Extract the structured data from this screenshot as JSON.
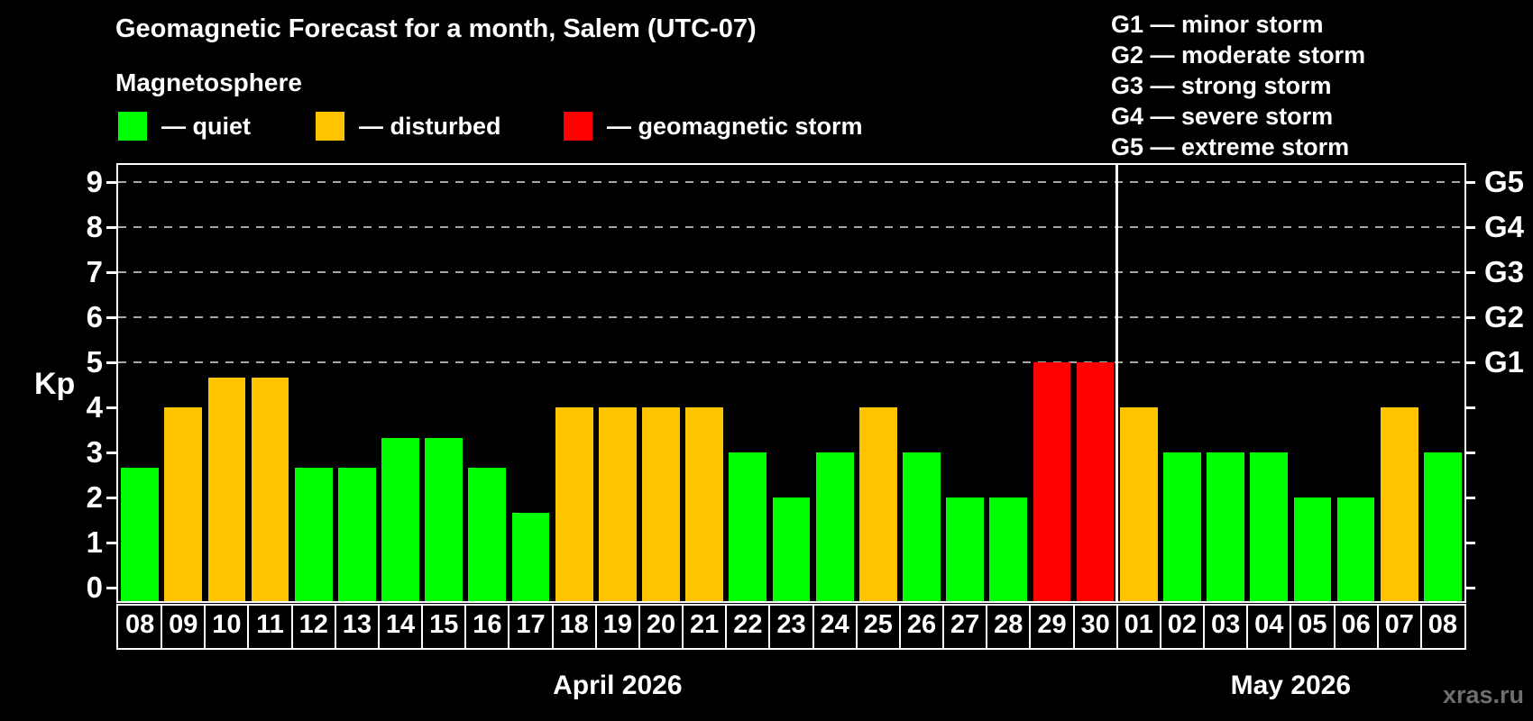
{
  "header": {
    "title": "Geomagnetic Forecast for a month, Salem (UTC-07)",
    "subtitle": "Magnetosphere"
  },
  "legend": {
    "items": [
      {
        "name": "quiet",
        "label": "— quiet",
        "color": "#00ff00",
        "offset_x": 0
      },
      {
        "name": "disturbed",
        "label": "— disturbed",
        "color": "#ffc400",
        "offset_x": 219
      },
      {
        "name": "storm",
        "label": "— geomagnetic storm",
        "color": "#ff0000",
        "offset_x": 494
      }
    ]
  },
  "g_scale_legend": {
    "lines": [
      "G1 — minor storm",
      "G2 — moderate storm",
      "G3 — strong storm",
      "G4 — severe storm",
      "G5 — extreme storm"
    ]
  },
  "watermark": "xras.ru",
  "chart_data": {
    "type": "bar",
    "title": "Geomagnetic Forecast for a month, Salem (UTC-07)",
    "ylabel": "Kp",
    "ylim": [
      -0.3,
      9.4
    ],
    "grid": "horizontal dashed lines at Kp 5..9 only",
    "legend_position": "top",
    "left_ticks": [
      0,
      1,
      2,
      3,
      4,
      5,
      6,
      7,
      8,
      9
    ],
    "right_labels": [
      {
        "kp": 5,
        "label": "G1"
      },
      {
        "kp": 6,
        "label": "G2"
      },
      {
        "kp": 7,
        "label": "G3"
      },
      {
        "kp": 8,
        "label": "G4"
      },
      {
        "kp": 9,
        "label": "G5"
      }
    ],
    "status_colors": {
      "quiet": "#00ff00",
      "disturbed": "#ffc400",
      "storm": "#ff0000"
    },
    "months": [
      {
        "label": "April 2026",
        "days": 23
      },
      {
        "label": "May 2026",
        "days": 8
      }
    ],
    "bars": [
      {
        "day": "08",
        "kp": 2.67,
        "status": "quiet"
      },
      {
        "day": "09",
        "kp": 4,
        "status": "disturbed"
      },
      {
        "day": "10",
        "kp": 4.67,
        "status": "disturbed"
      },
      {
        "day": "11",
        "kp": 4.67,
        "status": "disturbed"
      },
      {
        "day": "12",
        "kp": 2.67,
        "status": "quiet"
      },
      {
        "day": "13",
        "kp": 2.67,
        "status": "quiet"
      },
      {
        "day": "14",
        "kp": 3.33,
        "status": "quiet"
      },
      {
        "day": "15",
        "kp": 3.33,
        "status": "quiet"
      },
      {
        "day": "16",
        "kp": 2.67,
        "status": "quiet"
      },
      {
        "day": "17",
        "kp": 1.67,
        "status": "quiet"
      },
      {
        "day": "18",
        "kp": 4,
        "status": "disturbed"
      },
      {
        "day": "19",
        "kp": 4,
        "status": "disturbed"
      },
      {
        "day": "20",
        "kp": 4,
        "status": "disturbed"
      },
      {
        "day": "21",
        "kp": 4,
        "status": "disturbed"
      },
      {
        "day": "22",
        "kp": 3,
        "status": "quiet"
      },
      {
        "day": "23",
        "kp": 2,
        "status": "quiet"
      },
      {
        "day": "24",
        "kp": 3,
        "status": "quiet"
      },
      {
        "day": "25",
        "kp": 4,
        "status": "disturbed"
      },
      {
        "day": "26",
        "kp": 3,
        "status": "quiet"
      },
      {
        "day": "27",
        "kp": 2,
        "status": "quiet"
      },
      {
        "day": "28",
        "kp": 2,
        "status": "quiet"
      },
      {
        "day": "29",
        "kp": 5,
        "status": "storm"
      },
      {
        "day": "30",
        "kp": 5,
        "status": "storm"
      },
      {
        "day": "01",
        "kp": 4,
        "status": "disturbed"
      },
      {
        "day": "02",
        "kp": 3,
        "status": "quiet"
      },
      {
        "day": "03",
        "kp": 3,
        "status": "quiet"
      },
      {
        "day": "04",
        "kp": 3,
        "status": "quiet"
      },
      {
        "day": "05",
        "kp": 2,
        "status": "quiet"
      },
      {
        "day": "06",
        "kp": 2,
        "status": "quiet"
      },
      {
        "day": "07",
        "kp": 4,
        "status": "disturbed"
      },
      {
        "day": "08",
        "kp": 3,
        "status": "quiet"
      }
    ]
  }
}
